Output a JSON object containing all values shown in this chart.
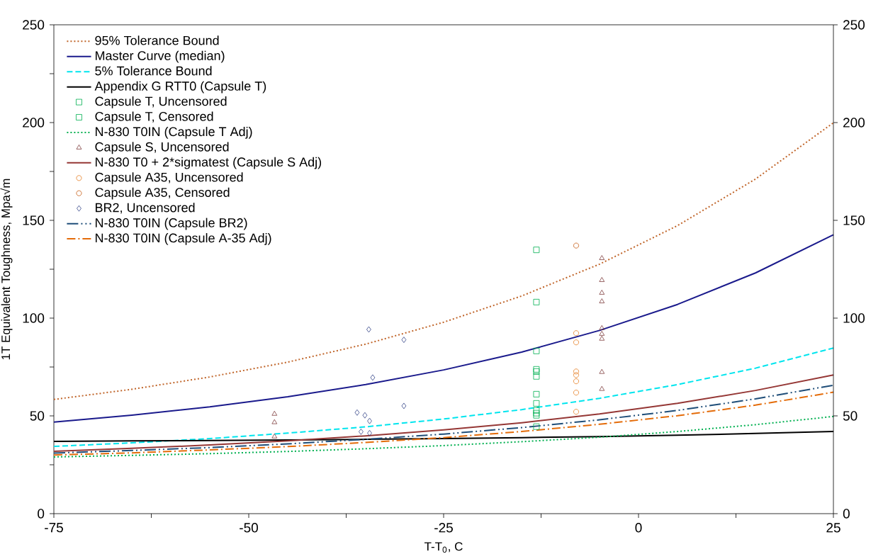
{
  "chart_data": {
    "type": "line",
    "xlabel": "T-T$_{0}$, C",
    "ylabel": "1T Equivalent Toughness, Mpa√m",
    "xlim": [
      -75,
      25
    ],
    "xticks": [
      -75,
      {
        "value": -62.5,
        "label": null
      },
      -50,
      {
        "value": -37.5,
        "label": null
      },
      -25,
      {
        "value": -12.5,
        "label": null
      },
      0,
      {
        "value": 12.5,
        "label": null
      },
      25
    ],
    "ylim": [
      0,
      250
    ],
    "yticks": [
      0,
      {
        "value": 25,
        "label": null
      },
      50,
      {
        "value": 75,
        "label": null
      },
      100,
      {
        "value": 125,
        "label": null
      },
      150,
      {
        "value": 175,
        "label": null
      },
      200,
      {
        "value": 225,
        "label": null
      },
      250
    ],
    "y2lim": [
      0,
      250
    ],
    "y2ticks": [
      0,
      50,
      100,
      150,
      200,
      250
    ],
    "legend": "top left",
    "grid": false,
    "series": [
      {
        "name": "95% Tolerance Bound",
        "color": "#c0652a",
        "line_style": "dotted",
        "marker": "none",
        "x": [
          -75,
          -65,
          -55,
          -45,
          -35,
          -25,
          -15,
          -5,
          5,
          15,
          25
        ],
        "values": [
          58.4,
          63.6,
          69.9,
          77.5,
          86.7,
          97.9,
          111.3,
          127.6,
          147.3,
          171.1,
          199.9
        ]
      },
      {
        "name": "Master Curve (median)",
        "color": "#1a1a8c",
        "line_style": "solid",
        "marker": "none",
        "x": [
          -75,
          -65,
          -55,
          -45,
          -35,
          -25,
          -15,
          -5,
          5,
          15,
          25
        ],
        "values": [
          46.8,
          50.4,
          54.6,
          59.8,
          66.0,
          73.5,
          82.6,
          93.7,
          107.0,
          123.1,
          142.6
        ]
      },
      {
        "name": "5% Tolerance Bound",
        "color": "#00e5ee",
        "line_style": "dashed",
        "marker": "none",
        "x": [
          -75,
          -65,
          -55,
          -45,
          -35,
          -25,
          -15,
          -5,
          5,
          15,
          25
        ],
        "values": [
          34.4,
          36.2,
          38.4,
          41.2,
          44.4,
          48.4,
          53.2,
          59.0,
          66.0,
          74.4,
          84.7
        ]
      },
      {
        "name": "Appendix G RTT0 (Capsule T)",
        "color": "#000000",
        "line_style": "solid",
        "marker": "none",
        "x": [
          -75,
          -65,
          -55,
          -45,
          -35,
          -25,
          -15,
          -5,
          5,
          15,
          25
        ],
        "values": [
          37.0,
          37.2,
          37.4,
          37.7,
          38.0,
          38.4,
          38.9,
          39.4,
          40.1,
          41.0,
          42.0
        ]
      },
      {
        "name": "Capsule T, Uncensored",
        "type": "scatter",
        "color": "#00b050",
        "marker": "square",
        "x": [
          -13.1,
          -13.1,
          -13.1,
          -13.1,
          -13.1,
          -13.1,
          -13.1,
          -13.1,
          -13.1,
          -13.1,
          -13.1
        ],
        "values": [
          108.2,
          83.2,
          73.8,
          72.7,
          70.2,
          61.1,
          56.4,
          52.8,
          51.4,
          50.3,
          44.5
        ]
      },
      {
        "name": "Capsule T, Censored",
        "type": "scatter",
        "color": "#00b050",
        "marker": "square",
        "x": [
          -13.1
        ],
        "values": [
          134.9
        ]
      },
      {
        "name": "N-830 T0IN (Capsule T Adj)",
        "color": "#00b050",
        "line_style": "dotted",
        "marker": "none",
        "x": [
          -75,
          -65,
          -55,
          -45,
          -35,
          -25,
          -15,
          -5,
          5,
          15,
          25
        ],
        "values": [
          29.0,
          29.8,
          30.7,
          31.8,
          33.2,
          34.8,
          36.8,
          39.1,
          42.0,
          45.5,
          49.7
        ]
      },
      {
        "name": "Capsule S, Uncensored",
        "type": "scatter",
        "color": "#7f3f3f",
        "marker": "triangle",
        "x": [
          -46.7,
          -46.7,
          -46.7,
          -4.7,
          -4.7,
          -4.7,
          -4.7,
          -4.7,
          -4.7,
          -4.7,
          -4.7,
          -4.7
        ],
        "values": [
          51.0,
          46.7,
          39.4,
          130.6,
          119.4,
          112.9,
          108.5,
          94.8,
          91.9,
          89.4,
          72.4,
          63.7
        ]
      },
      {
        "name": "N-830 T0 + 2*sigmatest (Capsule S Adj)",
        "color": "#953735",
        "line_style": "solid",
        "marker": "none",
        "x": [
          -75,
          -65,
          -55,
          -45,
          -35,
          -25,
          -15,
          -5,
          5,
          15,
          25
        ],
        "values": [
          31.9,
          33.4,
          35.1,
          37.2,
          39.8,
          42.8,
          46.5,
          51.0,
          56.4,
          63.0,
          70.9
        ]
      },
      {
        "name": "Capsule A35, Uncensored",
        "type": "scatter",
        "color": "#e67e22",
        "marker": "circle",
        "x": [
          -8.0,
          -8.0,
          -8.0,
          -8.0,
          -8.0,
          -8.0,
          -8.0
        ],
        "values": [
          92.3,
          87.6,
          72.7,
          70.9,
          67.7,
          61.9,
          52.1
        ]
      },
      {
        "name": "Capsule A35, Censored",
        "type": "scatter",
        "color": "#c55a11",
        "marker": "circle",
        "x": [
          -8.0
        ],
        "values": [
          137.1
        ]
      },
      {
        "name": "BR2, Uncensored",
        "type": "scatter",
        "color": "#334488",
        "marker": "diamond",
        "x": [
          -34.6,
          -30.1,
          -34.1,
          -30.1,
          -36.1,
          -35.1,
          -34.5,
          -35.6,
          -34.5
        ],
        "values": [
          94.2,
          88.9,
          69.6,
          55.1,
          51.7,
          50.3,
          47.4,
          41.9,
          41.2
        ]
      },
      {
        "name": "N-830 T0IN (Capsule BR2)",
        "color": "#1f4e79",
        "line_style": "dashdotdot",
        "marker": "none",
        "x": [
          -75,
          -65,
          -55,
          -45,
          -35,
          -25,
          -15,
          -5,
          5,
          15,
          25
        ],
        "values": [
          31.0,
          32.3,
          33.8,
          35.7,
          38.0,
          40.7,
          44.0,
          48.0,
          52.8,
          58.7,
          65.7
        ]
      },
      {
        "name": "N-830 T0IN (Capsule A-35 Adj)",
        "color": "#e46c0a",
        "line_style": "dashdot",
        "marker": "none",
        "x": [
          -75,
          -65,
          -55,
          -45,
          -35,
          -25,
          -15,
          -5,
          5,
          15,
          25
        ],
        "values": [
          30.0,
          31.1,
          32.6,
          34.3,
          36.4,
          38.9,
          42.0,
          45.7,
          50.1,
          55.5,
          62.1
        ]
      }
    ]
  }
}
